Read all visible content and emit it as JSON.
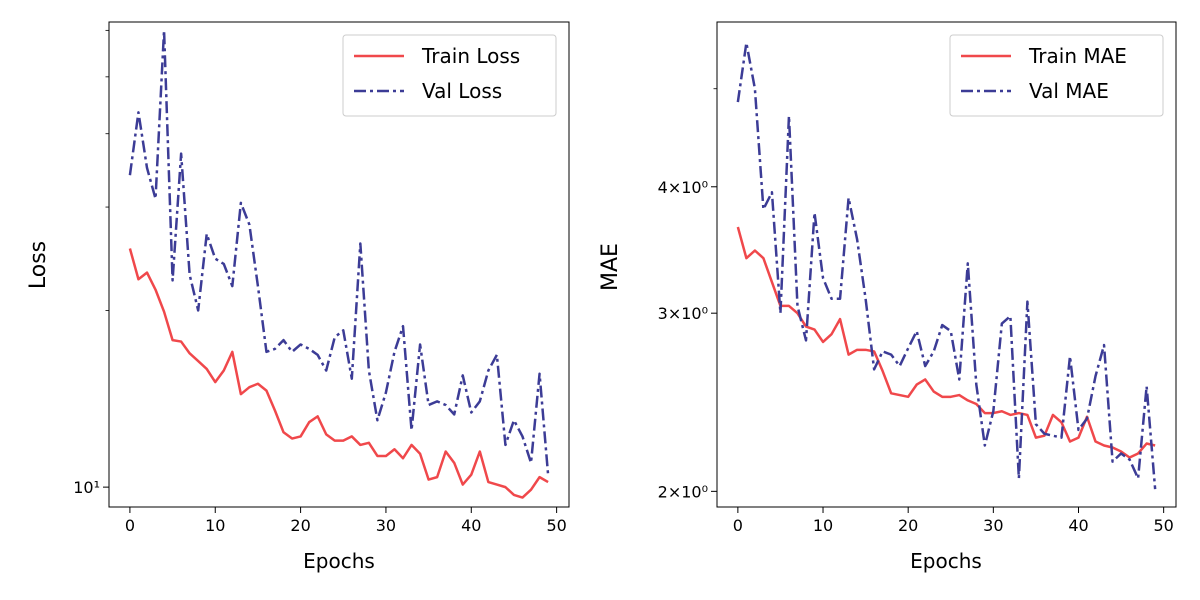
{
  "colors": {
    "train": "#f0484b",
    "val": "#3c3c96"
  },
  "chart_data": [
    {
      "type": "line",
      "xlabel": "Epochs",
      "ylabel": "Loss",
      "yscale": "log",
      "xlim": [
        -2.45,
        51.45
      ],
      "ylim": [
        9.25,
        62.0
      ],
      "xticks": [
        0,
        10,
        20,
        30,
        40,
        50
      ],
      "xtick_labels": [
        "0",
        "10",
        "20",
        "30",
        "40",
        "50"
      ],
      "yticks": [
        10
      ],
      "ytick_labels": [
        "10¹"
      ],
      "legend_position": "upper-right",
      "x": [
        0,
        1,
        2,
        3,
        4,
        5,
        6,
        7,
        8,
        9,
        10,
        11,
        12,
        13,
        14,
        15,
        16,
        17,
        18,
        19,
        20,
        21,
        22,
        23,
        24,
        25,
        26,
        27,
        28,
        29,
        30,
        31,
        32,
        33,
        34,
        35,
        36,
        37,
        38,
        39,
        40,
        41,
        42,
        43,
        44,
        45,
        46,
        47,
        48,
        49
      ],
      "series": [
        {
          "name": "Train Loss",
          "style": "solid",
          "color_key": "train",
          "values": [
            25.5,
            22.6,
            23.2,
            21.7,
            19.9,
            17.8,
            17.7,
            16.9,
            16.4,
            15.9,
            15.1,
            15.8,
            17.0,
            14.4,
            14.8,
            15.0,
            14.6,
            13.5,
            12.4,
            12.1,
            12.2,
            12.9,
            13.2,
            12.3,
            12.0,
            12.0,
            12.2,
            11.8,
            11.9,
            11.3,
            11.3,
            11.6,
            11.2,
            11.8,
            11.4,
            10.3,
            10.4,
            11.5,
            11.0,
            10.1,
            10.5,
            11.5,
            10.2,
            10.1,
            10.0,
            9.7,
            9.6,
            9.9,
            10.4,
            10.2
          ]
        },
        {
          "name": "Val Loss",
          "style": "dashdot",
          "color_key": "val",
          "values": [
            34.0,
            43.5,
            35.0,
            31.0,
            60.0,
            22.5,
            37.0,
            23.0,
            20.0,
            27.0,
            24.5,
            24.0,
            22.0,
            30.5,
            28.0,
            22.0,
            17.0,
            17.2,
            17.8,
            17.0,
            17.5,
            17.2,
            16.8,
            15.8,
            18.0,
            18.5,
            15.3,
            26.0,
            15.8,
            13.0,
            14.5,
            17.0,
            18.8,
            12.5,
            17.5,
            13.8,
            14.0,
            13.8,
            13.3,
            15.5,
            13.4,
            14.0,
            15.8,
            16.8,
            11.8,
            13.0,
            12.2,
            11.0,
            15.6,
            10.5
          ]
        }
      ]
    },
    {
      "type": "line",
      "xlabel": "Epochs",
      "ylabel": "MAE",
      "yscale": "log",
      "xlim": [
        -2.45,
        51.45
      ],
      "ylim": [
        1.93,
        5.82
      ],
      "xticks": [
        0,
        10,
        20,
        30,
        40,
        50
      ],
      "xtick_labels": [
        "0",
        "10",
        "20",
        "30",
        "40",
        "50"
      ],
      "yticks": [
        2,
        3,
        4
      ],
      "ytick_labels": [
        "2×10⁰",
        "3×10⁰",
        "4×10⁰"
      ],
      "legend_position": "upper-right",
      "x": [
        0,
        1,
        2,
        3,
        4,
        5,
        6,
        7,
        8,
        9,
        10,
        11,
        12,
        13,
        14,
        15,
        16,
        17,
        18,
        19,
        20,
        21,
        22,
        23,
        24,
        25,
        26,
        27,
        28,
        29,
        30,
        31,
        32,
        33,
        34,
        35,
        36,
        37,
        38,
        39,
        40,
        41,
        42,
        43,
        44,
        45,
        46,
        47,
        48,
        49
      ],
      "series": [
        {
          "name": "Train MAE",
          "style": "solid",
          "color_key": "train",
          "values": [
            3.65,
            3.4,
            3.46,
            3.4,
            3.22,
            3.05,
            3.05,
            3.0,
            2.91,
            2.89,
            2.81,
            2.86,
            2.96,
            2.73,
            2.76,
            2.76,
            2.75,
            2.63,
            2.5,
            2.49,
            2.48,
            2.55,
            2.58,
            2.51,
            2.48,
            2.48,
            2.49,
            2.46,
            2.44,
            2.39,
            2.39,
            2.4,
            2.38,
            2.39,
            2.38,
            2.26,
            2.27,
            2.38,
            2.34,
            2.24,
            2.26,
            2.37,
            2.24,
            2.22,
            2.21,
            2.19,
            2.16,
            2.18,
            2.23,
            2.22
          ]
        },
        {
          "name": "Val MAE",
          "style": "dashdot",
          "color_key": "val",
          "values": [
            4.85,
            5.55,
            5.0,
            3.8,
            3.95,
            3.0,
            4.7,
            3.05,
            2.82,
            3.77,
            3.25,
            3.1,
            3.1,
            3.9,
            3.55,
            3.1,
            2.64,
            2.75,
            2.73,
            2.66,
            2.77,
            2.88,
            2.66,
            2.75,
            2.92,
            2.88,
            2.58,
            3.36,
            2.55,
            2.22,
            2.4,
            2.93,
            2.98,
            2.06,
            3.08,
            2.33,
            2.28,
            2.27,
            2.26,
            2.72,
            2.3,
            2.36,
            2.6,
            2.79,
            2.14,
            2.18,
            2.15,
            2.06,
            2.54,
            2.01
          ]
        }
      ]
    }
  ]
}
